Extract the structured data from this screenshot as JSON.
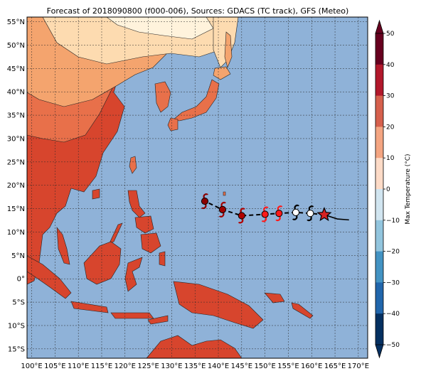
{
  "title": "Forecast of 2018090800 (f000-006), Sources: GDACS (TC track), GFS (Meteo)",
  "colorbar": {
    "label": "Max Temperature (°C)",
    "ticks": [
      "50",
      "40",
      "30",
      "20",
      "10",
      "0",
      "−10",
      "−20",
      "−30",
      "−40",
      "−50"
    ],
    "colors": [
      "#67001f",
      "#b2182b",
      "#d6604d",
      "#f4a582",
      "#fddbc7",
      "#f7f7f7",
      "#d1e5f0",
      "#92c5de",
      "#4393c3",
      "#2166ac",
      "#053061"
    ]
  },
  "map": {
    "lat_labels": [
      "55°N",
      "50°N",
      "45°N",
      "40°N",
      "35°N",
      "30°N",
      "25°N",
      "20°N",
      "15°N",
      "10°N",
      "5°N",
      "0°",
      "5°S",
      "10°S",
      "15°S"
    ],
    "lon_labels": [
      "100°E",
      "105°E",
      "110°E",
      "115°E",
      "120°E",
      "125°E",
      "130°E",
      "135°E",
      "140°E",
      "145°E",
      "150°E",
      "155°E",
      "160°E",
      "165°E",
      "170°E"
    ],
    "extent": {
      "lon": [
        99,
        172
      ],
      "lat": [
        -17,
        56
      ]
    },
    "colors": {
      "ocean": "#8fb2d8",
      "land_hot": "#d7452d",
      "land_warm": "#e8704a",
      "land_mild": "#f4a46e",
      "land_cool": "#fddbb0",
      "land_cold": "#fff3dc",
      "grid": "#2a2a2a"
    },
    "track": [
      {
        "lon": 162.7,
        "lat": 13.7,
        "kind": "current-star",
        "color": "#d62222"
      },
      {
        "lon": 159.7,
        "lat": 14.0,
        "kind": "cyclone-white",
        "color": "#ffffff"
      },
      {
        "lon": 156.6,
        "lat": 14.2,
        "kind": "cyclone-white",
        "color": "#ffffff"
      },
      {
        "lon": 153.0,
        "lat": 14.0,
        "kind": "cyclone-red",
        "color": "#ff1a1a"
      },
      {
        "lon": 150.0,
        "lat": 13.8,
        "kind": "cyclone-red",
        "color": "#ff1a1a"
      },
      {
        "lon": 145.0,
        "lat": 13.5,
        "kind": "cyclone-dark",
        "color": "#b00000"
      },
      {
        "lon": 140.9,
        "lat": 14.8,
        "kind": "cyclone-dark",
        "color": "#a00000"
      },
      {
        "lon": 137.1,
        "lat": 16.6,
        "kind": "cyclone-dark",
        "color": "#8b0000"
      }
    ],
    "past_track": [
      {
        "lon": 162.7,
        "lat": 13.7
      },
      {
        "lon": 165.5,
        "lat": 12.8
      },
      {
        "lon": 168.0,
        "lat": 12.6
      }
    ]
  }
}
